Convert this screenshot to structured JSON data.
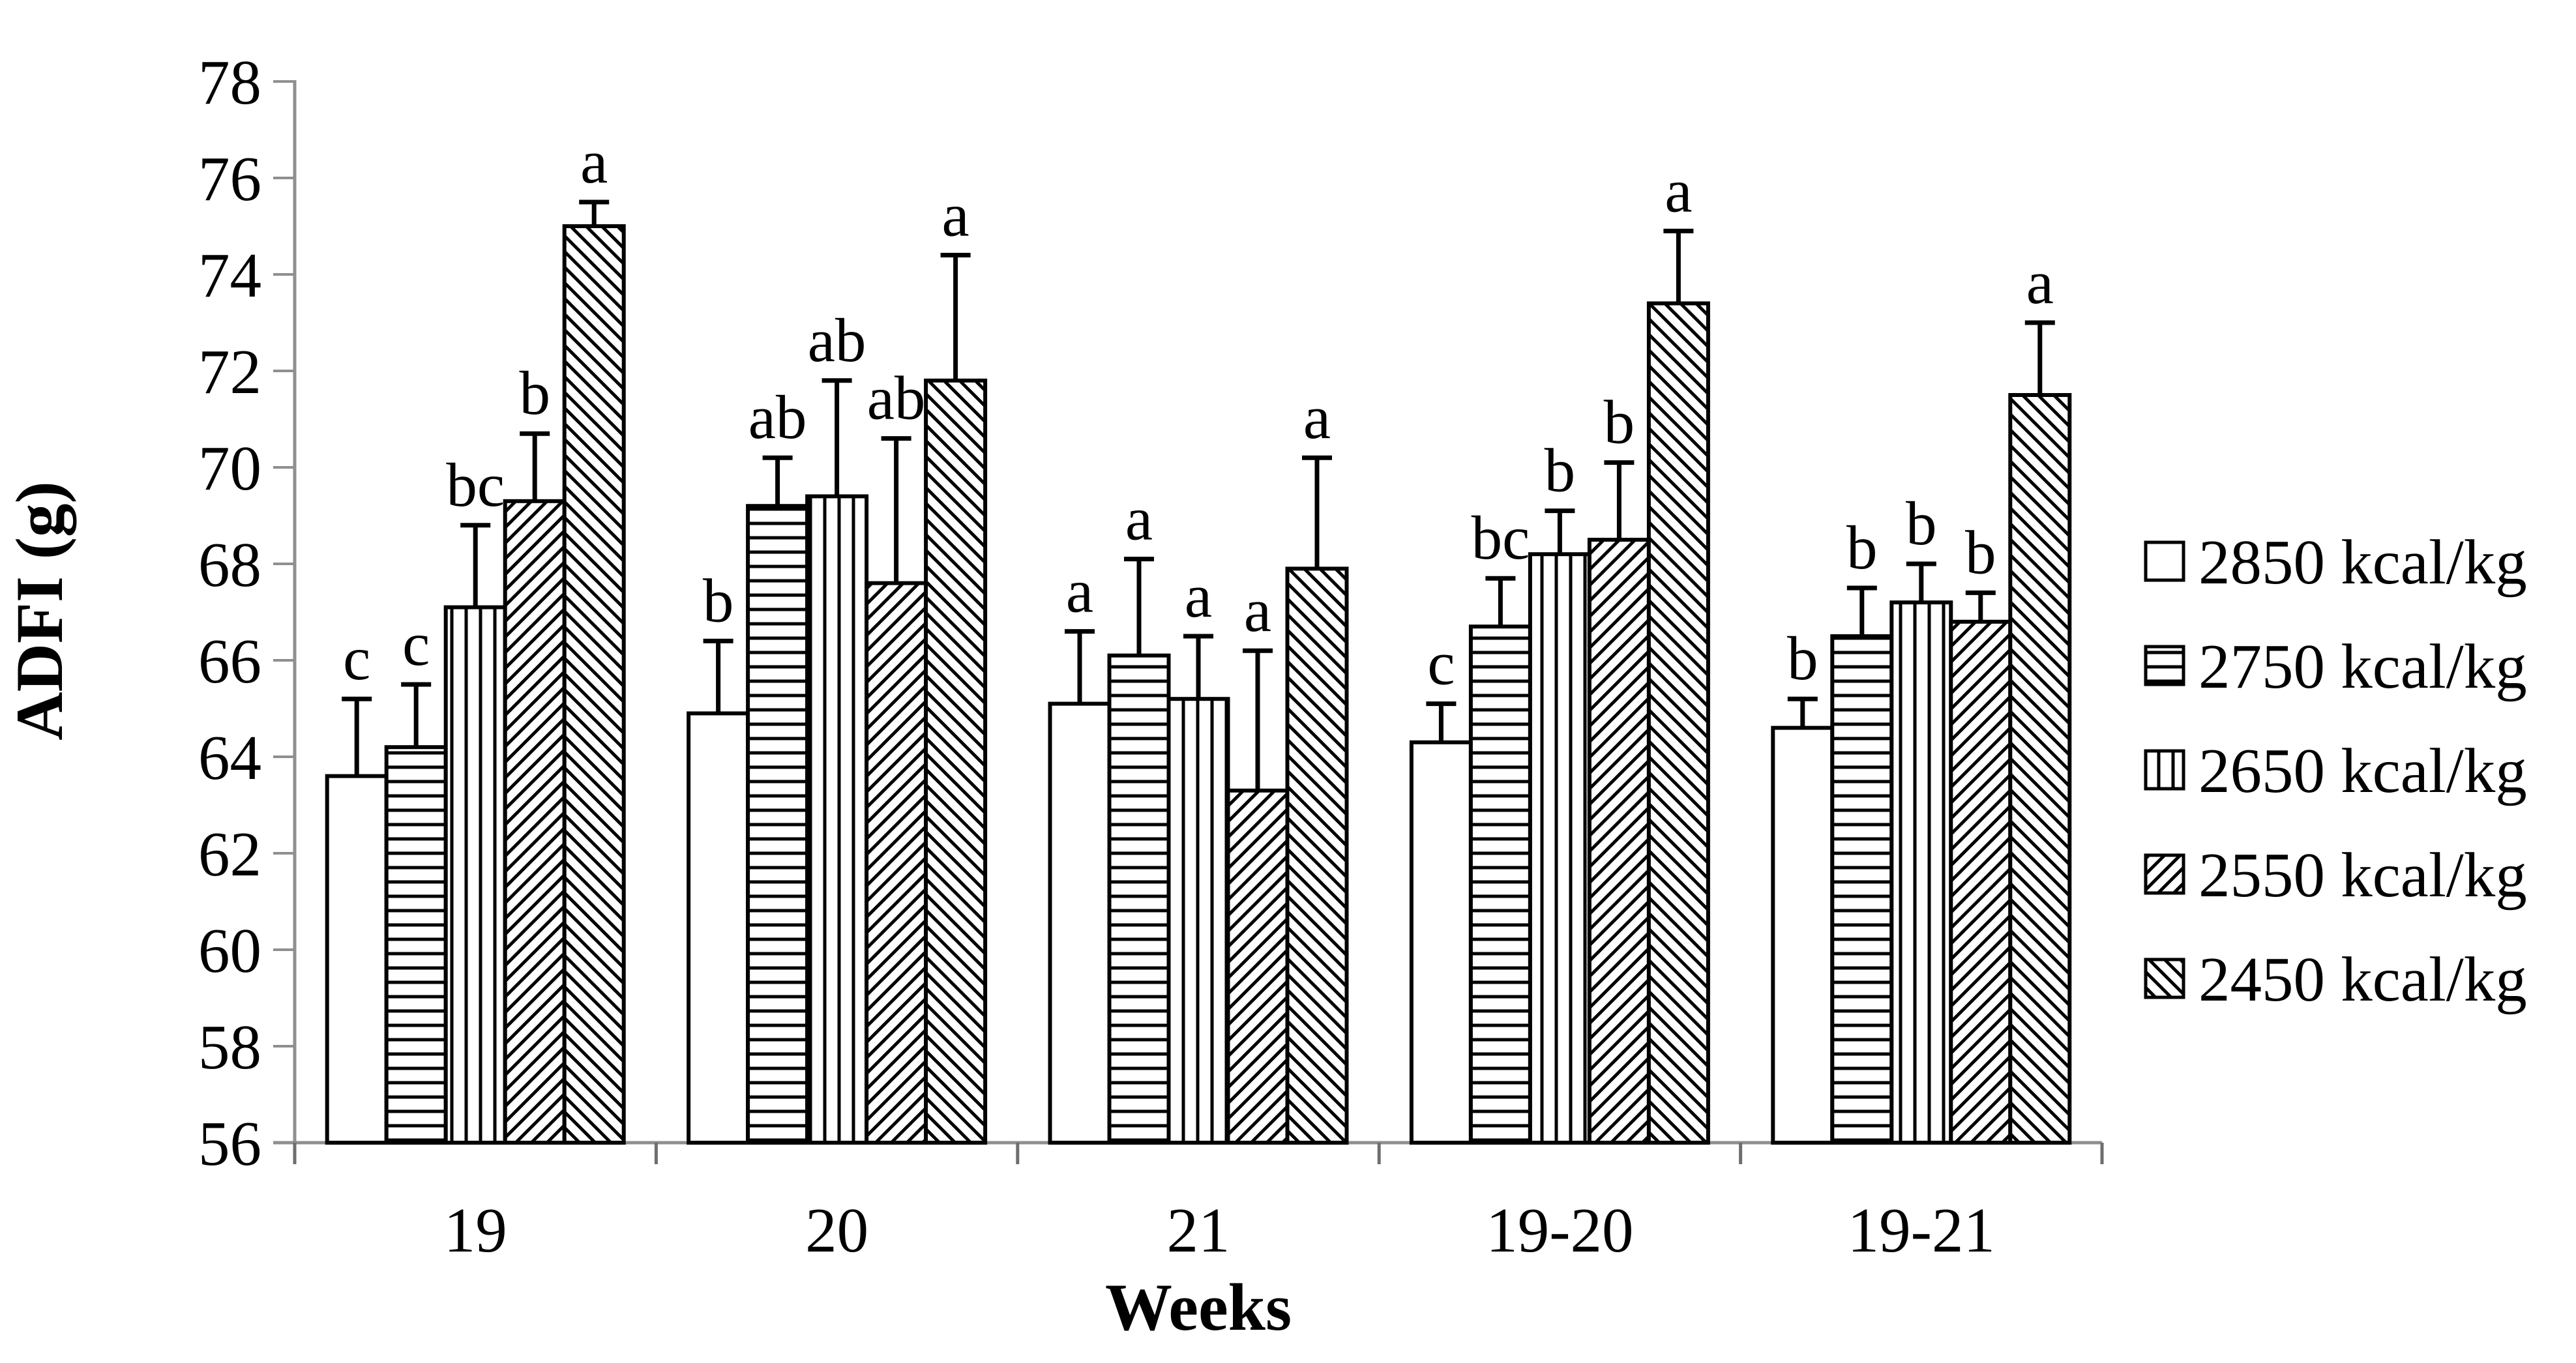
{
  "chart_data": {
    "type": "bar",
    "title": "",
    "xlabel": "Weeks",
    "ylabel": "ADFI (g)",
    "ylim": [
      56,
      78
    ],
    "ytick_step": 2,
    "yticks": [
      56,
      58,
      60,
      62,
      64,
      66,
      68,
      70,
      72,
      74,
      76,
      78
    ],
    "categories": [
      "19",
      "20",
      "21",
      "19-20",
      "19-21"
    ],
    "grid": false,
    "legend_position": "right-middle",
    "ink_color": "#000000",
    "axis_color": "#8f8f8f",
    "background_color": "#ffffff",
    "error_bars": "upper-whisker-with-cap",
    "series": [
      {
        "name": "2850 kcal/kg",
        "pattern": "plain",
        "values": [
          63.6,
          64.9,
          65.1,
          64.3,
          64.6
        ],
        "errors": [
          1.6,
          1.5,
          1.5,
          0.8,
          0.6
        ],
        "letters": [
          "c",
          "b",
          "a",
          "c",
          "b"
        ]
      },
      {
        "name": "2750 kcal/kg",
        "pattern": "horizontal-lines",
        "values": [
          64.2,
          69.2,
          66.1,
          66.7,
          66.5
        ],
        "errors": [
          1.3,
          1.0,
          2.0,
          1.0,
          1.0
        ],
        "letters": [
          "c",
          "ab",
          "a",
          "bc",
          "b"
        ]
      },
      {
        "name": "2650 kcal/kg",
        "pattern": "vertical-lines",
        "values": [
          67.1,
          69.4,
          65.2,
          68.2,
          67.2
        ],
        "errors": [
          1.7,
          2.4,
          1.3,
          0.9,
          0.8
        ],
        "letters": [
          "bc",
          "ab",
          "a",
          "b",
          "b"
        ]
      },
      {
        "name": "2550 kcal/kg",
        "pattern": "diagonal-up",
        "values": [
          69.3,
          67.6,
          63.3,
          68.5,
          66.8
        ],
        "errors": [
          1.4,
          3.0,
          2.9,
          1.6,
          0.6
        ],
        "letters": [
          "b",
          "ab",
          "a",
          "b",
          "b"
        ]
      },
      {
        "name": "2450 kcal/kg",
        "pattern": "diagonal-down",
        "values": [
          75.0,
          71.8,
          67.9,
          73.4,
          71.5
        ],
        "errors": [
          0.5,
          2.6,
          2.3,
          1.5,
          1.5
        ],
        "letters": [
          "a",
          "a",
          "a",
          "a",
          "a"
        ]
      }
    ]
  }
}
